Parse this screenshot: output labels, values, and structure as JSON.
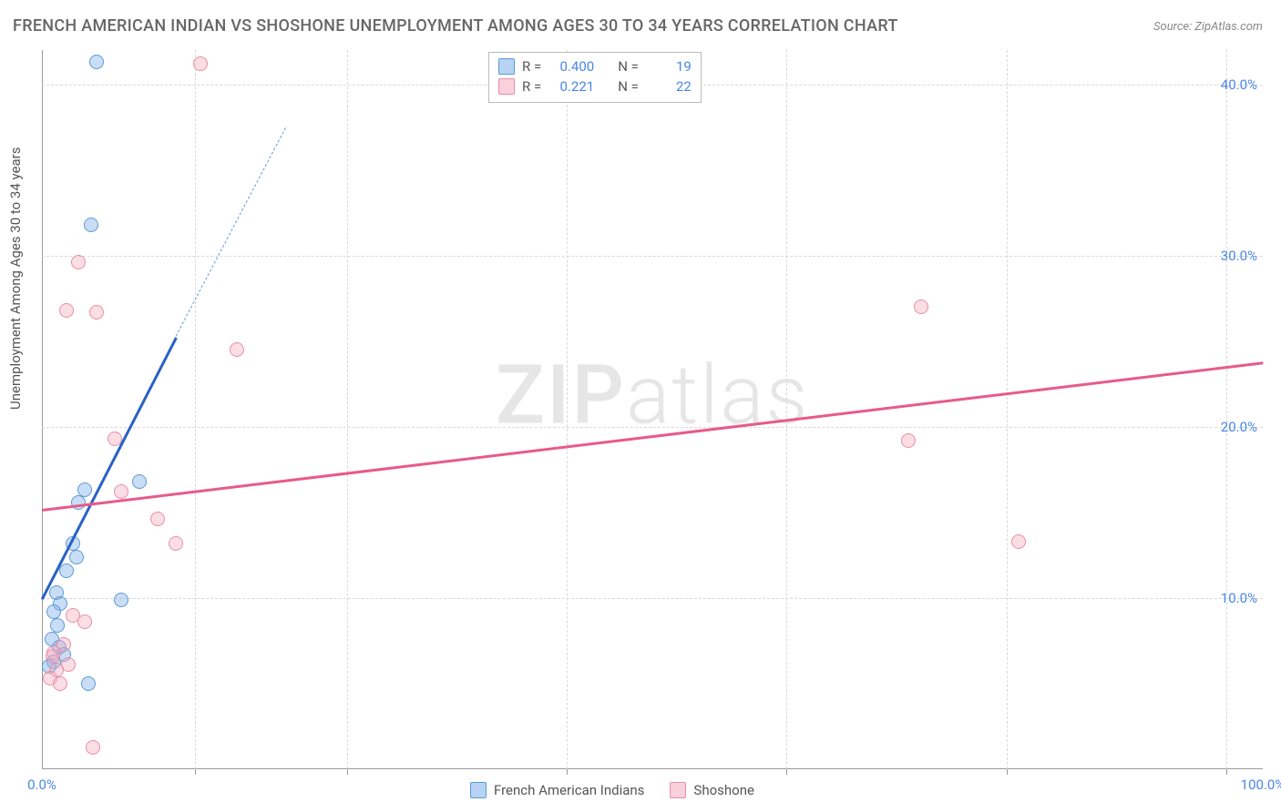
{
  "title": "FRENCH AMERICAN INDIAN VS SHOSHONE UNEMPLOYMENT AMONG AGES 30 TO 34 YEARS CORRELATION CHART",
  "source": "Source: ZipAtlas.com",
  "ylabel": "Unemployment Among Ages 30 to 34 years",
  "watermark_a": "ZIP",
  "watermark_b": "atlas",
  "chart": {
    "type": "scatter",
    "xlim": [
      0,
      100
    ],
    "ylim": [
      0,
      42
    ],
    "y_ticks": [
      10,
      20,
      30,
      40
    ],
    "y_tick_labels": [
      "10.0%",
      "20.0%",
      "30.0%",
      "40.0%"
    ],
    "x_ticks": [
      0,
      100
    ],
    "x_tick_labels": [
      "0.0%",
      "100.0%"
    ],
    "x_grid_positions": [
      12.5,
      25,
      43,
      61,
      79,
      97
    ],
    "background_color": "#ffffff",
    "grid_color": "#d8d8d8",
    "axis_color": "#999999",
    "tick_label_color": "#4a86e8",
    "marker_size": 16,
    "series": [
      {
        "name": "French American Indians",
        "color_fill": "rgba(135,180,235,0.45)",
        "color_stroke": "#5a9bd5",
        "points": [
          [
            4.5,
            41.3
          ],
          [
            4.0,
            31.8
          ],
          [
            3.5,
            16.3
          ],
          [
            3.0,
            15.6
          ],
          [
            8.0,
            16.8
          ],
          [
            2.5,
            13.2
          ],
          [
            2.8,
            12.4
          ],
          [
            2.0,
            11.6
          ],
          [
            6.5,
            9.9
          ],
          [
            1.2,
            10.3
          ],
          [
            1.5,
            9.7
          ],
          [
            1.0,
            9.2
          ],
          [
            1.3,
            8.4
          ],
          [
            0.8,
            7.6
          ],
          [
            1.4,
            7.1
          ],
          [
            1.0,
            6.3
          ],
          [
            3.8,
            5.0
          ],
          [
            0.6,
            6.0
          ],
          [
            1.8,
            6.7
          ]
        ],
        "trend": {
          "slope_start": [
            0,
            10.0
          ],
          "slope_end": [
            11,
            25.3
          ],
          "dash_to": [
            20,
            37.5
          ],
          "color": "#2962c4"
        },
        "R": "0.400",
        "N": "19"
      },
      {
        "name": "Shoshone",
        "color_fill": "rgba(245,170,190,0.4)",
        "color_stroke": "#e78fa8",
        "points": [
          [
            13.0,
            41.2
          ],
          [
            3.0,
            29.6
          ],
          [
            2.0,
            26.8
          ],
          [
            4.5,
            26.7
          ],
          [
            16.0,
            24.5
          ],
          [
            72.0,
            27.0
          ],
          [
            6.0,
            19.3
          ],
          [
            9.5,
            14.6
          ],
          [
            11.0,
            13.2
          ],
          [
            6.5,
            16.2
          ],
          [
            71.0,
            19.2
          ],
          [
            80.0,
            13.3
          ],
          [
            2.5,
            9.0
          ],
          [
            3.5,
            8.6
          ],
          [
            1.8,
            7.3
          ],
          [
            1.0,
            6.8
          ],
          [
            2.2,
            6.1
          ],
          [
            1.2,
            5.8
          ],
          [
            0.9,
            6.6
          ],
          [
            4.2,
            1.3
          ],
          [
            0.7,
            5.3
          ],
          [
            1.5,
            5.0
          ]
        ],
        "trend": {
          "slope_start": [
            0,
            15.2
          ],
          "slope_end": [
            100,
            23.8
          ],
          "color": "#e85a8a"
        },
        "R": "0.221",
        "N": "22"
      }
    ]
  },
  "stats_box": {
    "rows": [
      {
        "swatch": "blue",
        "R_label": "R =",
        "R_val": "0.400",
        "N_label": "N =",
        "N_val": "19"
      },
      {
        "swatch": "pink",
        "R_label": "R =",
        "R_val": "0.221",
        "N_label": "N =",
        "N_val": "22"
      }
    ]
  },
  "bottom_legend": {
    "items": [
      {
        "swatch": "blue",
        "label": "French American Indians"
      },
      {
        "swatch": "pink",
        "label": "Shoshone"
      }
    ]
  }
}
